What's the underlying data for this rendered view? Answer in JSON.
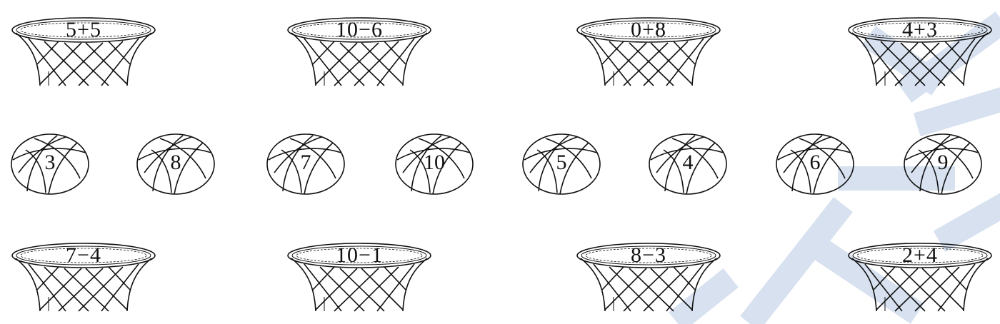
{
  "hoops_top": [
    {
      "label": "5+5"
    },
    {
      "label": "10−6"
    },
    {
      "label": "0+8"
    },
    {
      "label": "4+3"
    }
  ],
  "balls": [
    {
      "label": "3"
    },
    {
      "label": "8"
    },
    {
      "label": "7"
    },
    {
      "label": "10"
    },
    {
      "label": "5"
    },
    {
      "label": "4"
    },
    {
      "label": "6"
    },
    {
      "label": "9"
    }
  ],
  "hoops_bottom": [
    {
      "label": "7−4"
    },
    {
      "label": "10−1"
    },
    {
      "label": "8−3"
    },
    {
      "label": "2+4"
    }
  ],
  "colors": {
    "ink": "#111111",
    "watermark": "#d7e1ef"
  }
}
